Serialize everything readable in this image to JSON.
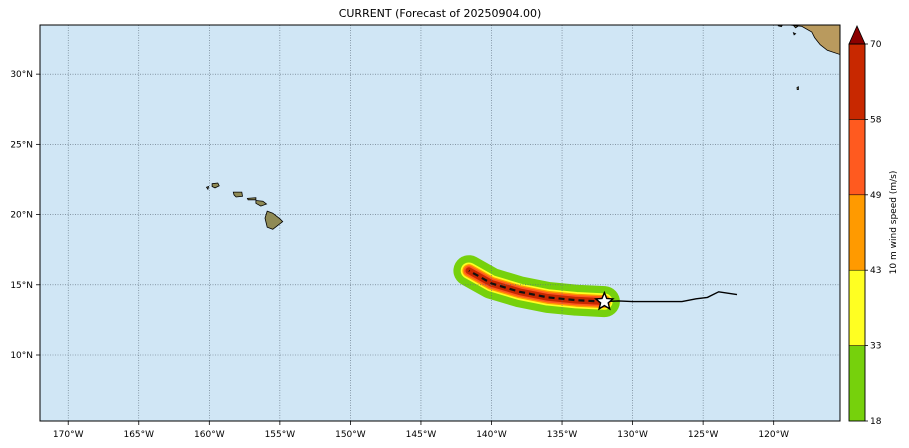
{
  "title": "CURRENT (Forecast of 20250904.00)",
  "map": {
    "lon_range": [
      -172,
      -115.3
    ],
    "lat_range": [
      5.3,
      33.5
    ],
    "ocean_color": "#d0e6f5",
    "grid": true,
    "lon_ticks": [
      {
        "value": -170,
        "label": "170°W"
      },
      {
        "value": -165,
        "label": "165°W"
      },
      {
        "value": -160,
        "label": "160°W"
      },
      {
        "value": -155,
        "label": "155°W"
      },
      {
        "value": -150,
        "label": "150°W"
      },
      {
        "value": -145,
        "label": "145°W"
      },
      {
        "value": -140,
        "label": "140°W"
      },
      {
        "value": -135,
        "label": "135°W"
      },
      {
        "value": -130,
        "label": "130°W"
      },
      {
        "value": -125,
        "label": "125°W"
      },
      {
        "value": -120,
        "label": "120°W"
      }
    ],
    "lat_ticks": [
      {
        "value": 10,
        "label": "10°N"
      },
      {
        "value": 15,
        "label": "15°N"
      },
      {
        "value": 20,
        "label": "20°N"
      },
      {
        "value": 25,
        "label": "25°N"
      },
      {
        "value": 30,
        "label": "30°N"
      }
    ],
    "storm": {
      "current_position": {
        "lon": -132,
        "lat": 13.8
      },
      "past_track": [
        {
          "lon": -132,
          "lat": 13.8
        },
        {
          "lon": -131,
          "lat": 13.85
        },
        {
          "lon": -130,
          "lat": 13.8
        },
        {
          "lon": -128,
          "lat": 13.8
        },
        {
          "lon": -126.5,
          "lat": 13.8
        },
        {
          "lon": -125.5,
          "lat": 14
        },
        {
          "lon": -124.7,
          "lat": 14.1
        },
        {
          "lon": -123.9,
          "lat": 14.5
        },
        {
          "lon": -122.6,
          "lat": 14.3
        }
      ],
      "forecast_track": [
        {
          "lon": -132,
          "lat": 13.8
        },
        {
          "lon": -134,
          "lat": 13.9
        },
        {
          "lon": -136,
          "lat": 14.1
        },
        {
          "lon": -138,
          "lat": 14.5
        },
        {
          "lon": -140,
          "lat": 15.1
        },
        {
          "lon": -141.6,
          "lat": 16
        }
      ],
      "wind_swaths": [
        {
          "threshold": 18,
          "color": "#76d10c",
          "half_width_deg": 1.1
        },
        {
          "threshold": 33,
          "color": "#ffff22",
          "half_width_deg": 0.58
        },
        {
          "threshold": 43,
          "color": "#ff9a00",
          "half_width_deg": 0.46
        },
        {
          "threshold": 49,
          "color": "#ff5a1f",
          "half_width_deg": 0.36
        },
        {
          "threshold": 58,
          "color": "#c82800",
          "half_width_deg": 0.24
        }
      ]
    },
    "islands": [
      {
        "name": "kauai",
        "points": [
          [
            -159.8,
            22.2
          ],
          [
            -159.4,
            22.25
          ],
          [
            -159.3,
            22.05
          ],
          [
            -159.6,
            21.9
          ],
          [
            -159.8,
            22.0
          ]
        ]
      },
      {
        "name": "niihau",
        "points": [
          [
            -160.2,
            21.95
          ],
          [
            -160.05,
            22.0
          ],
          [
            -160.1,
            21.8
          ]
        ]
      },
      {
        "name": "oahu",
        "points": [
          [
            -158.3,
            21.6
          ],
          [
            -157.7,
            21.6
          ],
          [
            -157.65,
            21.3
          ],
          [
            -158.1,
            21.25
          ],
          [
            -158.25,
            21.4
          ]
        ]
      },
      {
        "name": "molokai",
        "points": [
          [
            -157.3,
            21.15
          ],
          [
            -156.7,
            21.2
          ],
          [
            -156.7,
            21.05
          ],
          [
            -157.25,
            21.05
          ]
        ]
      },
      {
        "name": "maui",
        "points": [
          [
            -156.7,
            21.0
          ],
          [
            -156.2,
            20.95
          ],
          [
            -155.95,
            20.75
          ],
          [
            -156.35,
            20.6
          ],
          [
            -156.7,
            20.8
          ]
        ]
      },
      {
        "name": "hawaii",
        "points": [
          [
            -155.9,
            20.25
          ],
          [
            -155.5,
            20.1
          ],
          [
            -155.0,
            19.7
          ],
          [
            -154.8,
            19.5
          ],
          [
            -155.5,
            18.95
          ],
          [
            -155.9,
            19.1
          ],
          [
            -156.05,
            19.75
          ]
        ]
      },
      {
        "name": "guadalupe",
        "points": [
          [
            -118.35,
            29.05
          ],
          [
            -118.25,
            29.1
          ],
          [
            -118.25,
            28.9
          ],
          [
            -118.33,
            28.9
          ]
        ]
      }
    ],
    "mainland": [
      [
        -118.9,
        33.5
      ],
      [
        -115.3,
        33.5
      ],
      [
        -115.3,
        31.4
      ],
      [
        -116.2,
        31.7
      ],
      [
        -116.7,
        32.1
      ],
      [
        -117.1,
        32.6
      ],
      [
        -117.3,
        33.0
      ],
      [
        -118.0,
        33.4
      ]
    ],
    "channel_islands": [
      {
        "points": [
          [
            -119.7,
            33.45
          ],
          [
            -119.4,
            33.47
          ],
          [
            -119.45,
            33.38
          ]
        ]
      },
      {
        "points": [
          [
            -118.6,
            33.47
          ],
          [
            -118.3,
            33.4
          ],
          [
            -118.45,
            33.3
          ]
        ]
      },
      {
        "points": [
          [
            -118.6,
            32.95
          ],
          [
            -118.45,
            32.88
          ],
          [
            -118.55,
            32.8
          ]
        ]
      }
    ]
  },
  "colorbar": {
    "label": "10 m wind speed (m/s)",
    "levels": [
      {
        "value": "18",
        "color": "#76d10c"
      },
      {
        "value": "33",
        "color": "#ffff22"
      },
      {
        "value": "43",
        "color": "#ff9a00"
      },
      {
        "value": "49",
        "color": "#ff5a1f"
      },
      {
        "value": "58",
        "color": "#c82800"
      },
      {
        "value": "70",
        "color": "#8b0000"
      }
    ]
  }
}
